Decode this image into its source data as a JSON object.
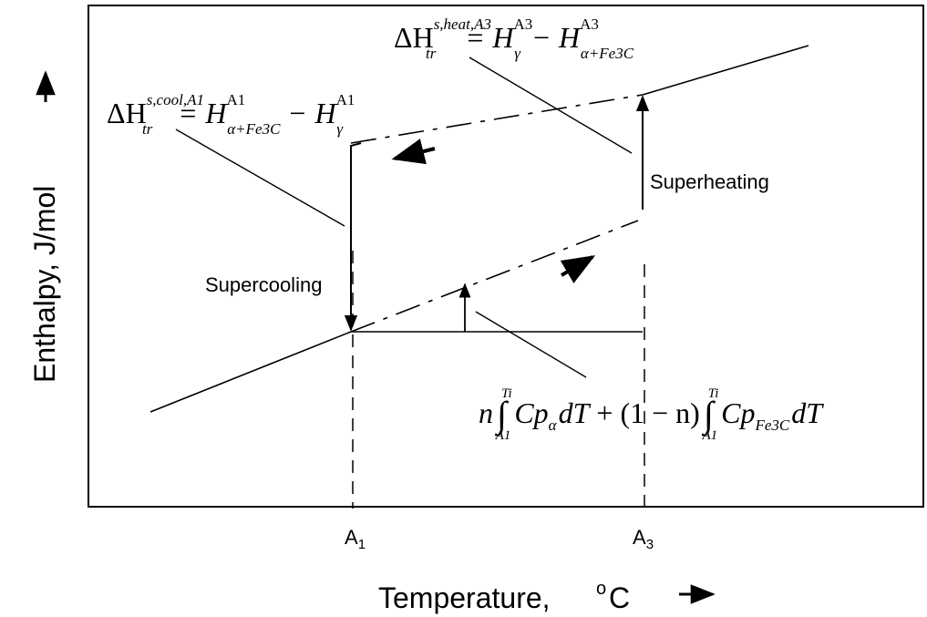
{
  "axes": {
    "xlabel": "Temperature,",
    "xunit_sup": "o",
    "xunit": "C",
    "ylabel": "Enthalpy,  J/mol",
    "x_ticks": [
      {
        "base": "A",
        "sub": "1"
      },
      {
        "base": "A",
        "sub": "3"
      }
    ]
  },
  "labels": {
    "supercooling": "Supercooling",
    "superheating": "Superheating"
  },
  "equations": {
    "cool": {
      "delta": "ΔH",
      "sup": "s,cool,A1",
      "sub": "tr",
      "equals": "=",
      "h1": "H",
      "h1_sup": "A1",
      "h1_sub": "α+Fe3C",
      "minus": "−",
      "h2": "H",
      "h2_sup": "A1",
      "h2_sub": "γ"
    },
    "heat": {
      "delta": "ΔH",
      "sup": "s,heat,A3",
      "sub": "tr",
      "equals": "=",
      "h1": "H",
      "h1_sup": "A3",
      "h1_sub": "γ",
      "minus": "−",
      "h2": "H",
      "h2_sup": "A3",
      "h2_sub": "α+Fe3C"
    },
    "integral": {
      "n": "n",
      "int1_upper": "Ti",
      "int1_lower": "A1",
      "term1": "Cp",
      "term1_sub": "α",
      "dT1": "dT",
      "plus": "+",
      "factor": "(1 − n)",
      "int2_upper": "Ti",
      "int2_lower": "A1",
      "term2": "Cp",
      "term2_sub": "Fe3C",
      "dT2": "dT"
    }
  }
}
